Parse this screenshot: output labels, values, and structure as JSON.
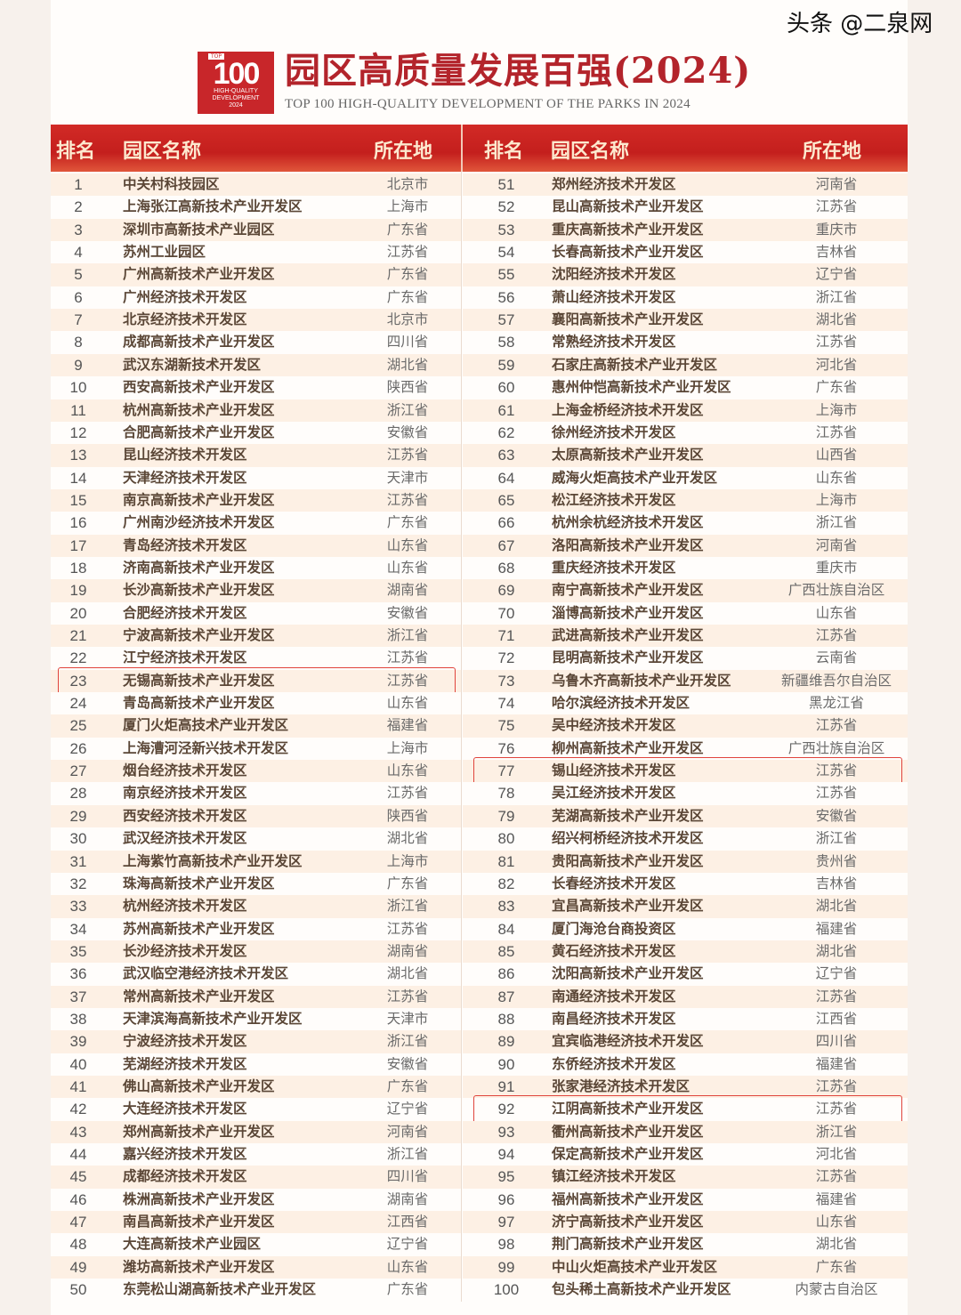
{
  "header": {
    "logo_text": "100",
    "logo_top": "TOP",
    "logo_line1": "HIGH-QUALITY",
    "logo_line2": "DEVELOPMENT",
    "logo_year": "2024",
    "title": "园区高质量发展百强(2024)",
    "subtitle": "TOP 100 HIGH-QUALITY DEVELOPMENT OF THE PARKS IN 2024"
  },
  "columns": {
    "rank": "排名",
    "name": "园区名称",
    "location": "所在地"
  },
  "colors": {
    "header_red": "#c41f1d",
    "title_red": "#b3242b",
    "highlight_border": "#e0443c",
    "odd_row": "#fdf0e4"
  },
  "highlighted_ranks": [
    23,
    77,
    92
  ],
  "rows": [
    [
      "1",
      "中关村科技园区",
      "北京市"
    ],
    [
      "2",
      "上海张江高新技术产业开发区",
      "上海市"
    ],
    [
      "3",
      "深圳市高新技术产业园区",
      "广东省"
    ],
    [
      "4",
      "苏州工业园区",
      "江苏省"
    ],
    [
      "5",
      "广州高新技术产业开发区",
      "广东省"
    ],
    [
      "6",
      "广州经济技术开发区",
      "广东省"
    ],
    [
      "7",
      "北京经济技术开发区",
      "北京市"
    ],
    [
      "8",
      "成都高新技术产业开发区",
      "四川省"
    ],
    [
      "9",
      "武汉东湖新技术开发区",
      "湖北省"
    ],
    [
      "10",
      "西安高新技术产业开发区",
      "陕西省"
    ],
    [
      "11",
      "杭州高新技术产业开发区",
      "浙江省"
    ],
    [
      "12",
      "合肥高新技术产业开发区",
      "安徽省"
    ],
    [
      "13",
      "昆山经济技术开发区",
      "江苏省"
    ],
    [
      "14",
      "天津经济技术开发区",
      "天津市"
    ],
    [
      "15",
      "南京高新技术产业开发区",
      "江苏省"
    ],
    [
      "16",
      "广州南沙经济技术开发区",
      "广东省"
    ],
    [
      "17",
      "青岛经济技术开发区",
      "山东省"
    ],
    [
      "18",
      "济南高新技术产业开发区",
      "山东省"
    ],
    [
      "19",
      "长沙高新技术产业开发区",
      "湖南省"
    ],
    [
      "20",
      "合肥经济技术开发区",
      "安徽省"
    ],
    [
      "21",
      "宁波高新技术产业开发区",
      "浙江省"
    ],
    [
      "22",
      "江宁经济技术开发区",
      "江苏省"
    ],
    [
      "23",
      "无锡高新技术产业开发区",
      "江苏省"
    ],
    [
      "24",
      "青岛高新技术产业开发区",
      "山东省"
    ],
    [
      "25",
      "厦门火炬高技术产业开发区",
      "福建省"
    ],
    [
      "26",
      "上海漕河泾新兴技术开发区",
      "上海市"
    ],
    [
      "27",
      "烟台经济技术开发区",
      "山东省"
    ],
    [
      "28",
      "南京经济技术开发区",
      "江苏省"
    ],
    [
      "29",
      "西安经济技术开发区",
      "陕西省"
    ],
    [
      "30",
      "武汉经济技术开发区",
      "湖北省"
    ],
    [
      "31",
      "上海紫竹高新技术产业开发区",
      "上海市"
    ],
    [
      "32",
      "珠海高新技术产业开发区",
      "广东省"
    ],
    [
      "33",
      "杭州经济技术开发区",
      "浙江省"
    ],
    [
      "34",
      "苏州高新技术产业开发区",
      "江苏省"
    ],
    [
      "35",
      "长沙经济技术开发区",
      "湖南省"
    ],
    [
      "36",
      "武汉临空港经济技术开发区",
      "湖北省"
    ],
    [
      "37",
      "常州高新技术产业开发区",
      "江苏省"
    ],
    [
      "38",
      "天津滨海高新技术产业开发区",
      "天津市"
    ],
    [
      "39",
      "宁波经济技术开发区",
      "浙江省"
    ],
    [
      "40",
      "芜湖经济技术开发区",
      "安徽省"
    ],
    [
      "41",
      "佛山高新技术产业开发区",
      "广东省"
    ],
    [
      "42",
      "大连经济技术开发区",
      "辽宁省"
    ],
    [
      "43",
      "郑州高新技术产业开发区",
      "河南省"
    ],
    [
      "44",
      "嘉兴经济技术开发区",
      "浙江省"
    ],
    [
      "45",
      "成都经济技术开发区",
      "四川省"
    ],
    [
      "46",
      "株洲高新技术产业开发区",
      "湖南省"
    ],
    [
      "47",
      "南昌高新技术产业开发区",
      "江西省"
    ],
    [
      "48",
      "大连高新技术产业园区",
      "辽宁省"
    ],
    [
      "49",
      "潍坊高新技术产业开发区",
      "山东省"
    ],
    [
      "50",
      "东莞松山湖高新技术产业开发区",
      "广东省"
    ],
    [
      "51",
      "郑州经济技术开发区",
      "河南省"
    ],
    [
      "52",
      "昆山高新技术产业开发区",
      "江苏省"
    ],
    [
      "53",
      "重庆高新技术产业开发区",
      "重庆市"
    ],
    [
      "54",
      "长春高新技术产业开发区",
      "吉林省"
    ],
    [
      "55",
      "沈阳经济技术开发区",
      "辽宁省"
    ],
    [
      "56",
      "萧山经济技术开发区",
      "浙江省"
    ],
    [
      "57",
      "襄阳高新技术产业开发区",
      "湖北省"
    ],
    [
      "58",
      "常熟经济技术开发区",
      "江苏省"
    ],
    [
      "59",
      "石家庄高新技术产业开发区",
      "河北省"
    ],
    [
      "60",
      "惠州仲恺高新技术产业开发区",
      "广东省"
    ],
    [
      "61",
      "上海金桥经济技术开发区",
      "上海市"
    ],
    [
      "62",
      "徐州经济技术开发区",
      "江苏省"
    ],
    [
      "63",
      "太原高新技术产业开发区",
      "山西省"
    ],
    [
      "64",
      "威海火炬高技术产业开发区",
      "山东省"
    ],
    [
      "65",
      "松江经济技术开发区",
      "上海市"
    ],
    [
      "66",
      "杭州余杭经济技术开发区",
      "浙江省"
    ],
    [
      "67",
      "洛阳高新技术产业开发区",
      "河南省"
    ],
    [
      "68",
      "重庆经济技术开发区",
      "重庆市"
    ],
    [
      "69",
      "南宁高新技术产业开发区",
      "广西壮族自治区"
    ],
    [
      "70",
      "淄博高新技术产业开发区",
      "山东省"
    ],
    [
      "71",
      "武进高新技术产业开发区",
      "江苏省"
    ],
    [
      "72",
      "昆明高新技术产业开发区",
      "云南省"
    ],
    [
      "73",
      "乌鲁木齐高新技术产业开发区",
      "新疆维吾尔自治区"
    ],
    [
      "74",
      "哈尔滨经济技术开发区",
      "黑龙江省"
    ],
    [
      "75",
      "吴中经济技术开发区",
      "江苏省"
    ],
    [
      "76",
      "柳州高新技术产业开发区",
      "广西壮族自治区"
    ],
    [
      "77",
      "锡山经济技术开发区",
      "江苏省"
    ],
    [
      "78",
      "吴江经济技术开发区",
      "江苏省"
    ],
    [
      "79",
      "芜湖高新技术产业开发区",
      "安徽省"
    ],
    [
      "80",
      "绍兴柯桥经济技术开发区",
      "浙江省"
    ],
    [
      "81",
      "贵阳高新技术产业开发区",
      "贵州省"
    ],
    [
      "82",
      "长春经济技术开发区",
      "吉林省"
    ],
    [
      "83",
      "宜昌高新技术产业开发区",
      "湖北省"
    ],
    [
      "84",
      "厦门海沧台商投资区",
      "福建省"
    ],
    [
      "85",
      "黄石经济技术开发区",
      "湖北省"
    ],
    [
      "86",
      "沈阳高新技术产业开发区",
      "辽宁省"
    ],
    [
      "87",
      "南通经济技术开发区",
      "江苏省"
    ],
    [
      "88",
      "南昌经济技术开发区",
      "江西省"
    ],
    [
      "89",
      "宜宾临港经济技术开发区",
      "四川省"
    ],
    [
      "90",
      "东侨经济技术开发区",
      "福建省"
    ],
    [
      "91",
      "张家港经济技术开发区",
      "江苏省"
    ],
    [
      "92",
      "江阴高新技术产业开发区",
      "江苏省"
    ],
    [
      "93",
      "衢州高新技术产业开发区",
      "浙江省"
    ],
    [
      "94",
      "保定高新技术产业开发区",
      "河北省"
    ],
    [
      "95",
      "镇江经济技术开发区",
      "江苏省"
    ],
    [
      "96",
      "福州高新技术产业开发区",
      "福建省"
    ],
    [
      "97",
      "济宁高新技术产业开发区",
      "山东省"
    ],
    [
      "98",
      "荆门高新技术产业开发区",
      "湖北省"
    ],
    [
      "99",
      "中山火炬高技术产业开发区",
      "广东省"
    ],
    [
      "100",
      "包头稀土高新技术产业开发区",
      "内蒙古自治区"
    ]
  ],
  "watermark": "头条 @二泉网"
}
